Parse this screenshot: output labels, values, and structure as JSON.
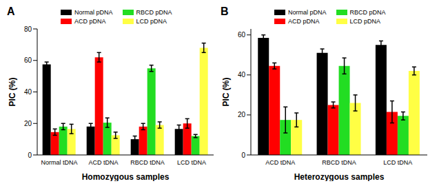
{
  "chart_data": [
    {
      "type": "bar",
      "title": "A",
      "x_label": "Homozygous samples",
      "y_label": "PIC (%)",
      "categories": [
        "Normal tDNA",
        "ACD tDNA",
        "RBCD tDNA",
        "LCD tDNA"
      ],
      "series": [
        {
          "name": "Normal pDNA",
          "color": "#000000",
          "values": [
            57.5,
            18,
            10,
            16.5
          ],
          "errors": [
            1.5,
            2,
            2,
            2.5
          ]
        },
        {
          "name": "ACD pDNA",
          "color": "#ff0000",
          "values": [
            14.5,
            62,
            18,
            20
          ],
          "errors": [
            2,
            3,
            2,
            3
          ]
        },
        {
          "name": "RBCD pDNA",
          "color": "#22dd22",
          "values": [
            18,
            20.5,
            55,
            12
          ],
          "errors": [
            2,
            3,
            2,
            1
          ]
        },
        {
          "name": "LCD pDNA",
          "color": "#ffff44",
          "values": [
            16.5,
            12.5,
            19,
            68
          ],
          "errors": [
            3,
            2,
            2,
            3
          ]
        }
      ],
      "ylim": [
        0,
        80
      ],
      "yticks": [
        0,
        20,
        40,
        60,
        80
      ],
      "grid": false
    },
    {
      "type": "bar",
      "title": "B",
      "x_label": "Heterozygous samples",
      "y_label": "PIC (%)",
      "categories": [
        "ACD tDNA",
        "RBCD tDNA",
        "LCD tDNA"
      ],
      "series": [
        {
          "name": "Normal pDNA",
          "color": "#000000",
          "values": [
            58.5,
            51,
            55
          ],
          "errors": [
            1.5,
            2,
            2
          ]
        },
        {
          "name": "ACD pDNA",
          "color": "#ff0000",
          "values": [
            44.5,
            25,
            21.5
          ],
          "errors": [
            1.5,
            1.5,
            5.5
          ]
        },
        {
          "name": "RBCD pDNA",
          "color": "#22dd22",
          "values": [
            17.5,
            44.5,
            19.5
          ],
          "errors": [
            6.5,
            4,
            2
          ]
        },
        {
          "name": "LCD pDNA",
          "color": "#ffff44",
          "values": [
            17.5,
            26,
            42
          ],
          "errors": [
            3.5,
            4,
            2
          ]
        }
      ],
      "ylim": [
        0,
        63
      ],
      "yticks": [
        0,
        20,
        40,
        60
      ],
      "grid": false
    }
  ]
}
